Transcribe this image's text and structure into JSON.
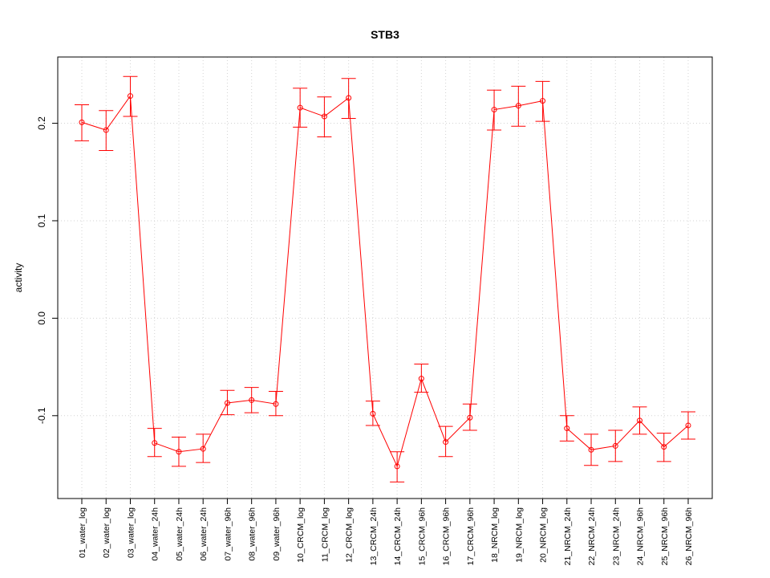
{
  "chart_data": {
    "type": "line",
    "title": "STB3",
    "xlabel": "",
    "ylabel": "activity",
    "ylim": [
      -0.185,
      0.268
    ],
    "yticks": [
      -0.1,
      0.0,
      0.1,
      0.2
    ],
    "ytick_labels": [
      "-0.1",
      "0.0",
      "0.1",
      "0.2"
    ],
    "grid": true,
    "series_color": "#ff0000",
    "grid_color": "#d3d3d3",
    "categories": [
      "01_water_log",
      "02_water_log",
      "03_water_log",
      "04_water_24h",
      "05_water_24h",
      "06_water_24h",
      "07_water_96h",
      "08_water_96h",
      "09_water_96h",
      "10_CRCM_log",
      "11_CRCM_log",
      "12_CRCM_log",
      "13_CRCM_24h",
      "14_CRCM_24h",
      "15_CRCM_96h",
      "16_CRCM_96h",
      "17_CRCM_96h",
      "18_NRCM_log",
      "19_NRCM_log",
      "20_NRCM_log",
      "21_NRCM_24h",
      "22_NRCM_24h",
      "23_NRCM_24h",
      "24_NRCM_96h",
      "25_NRCM_96h",
      "26_NRCM_96h"
    ],
    "values": [
      0.201,
      0.193,
      0.228,
      -0.128,
      -0.137,
      -0.134,
      -0.087,
      -0.084,
      -0.088,
      0.216,
      0.207,
      0.226,
      -0.098,
      -0.152,
      -0.062,
      -0.127,
      -0.102,
      0.214,
      0.218,
      0.223,
      -0.113,
      -0.135,
      -0.131,
      -0.105,
      -0.132,
      -0.11
    ],
    "upper": [
      0.219,
      0.213,
      0.248,
      -0.113,
      -0.122,
      -0.119,
      -0.074,
      -0.071,
      -0.075,
      0.236,
      0.227,
      0.246,
      -0.085,
      -0.137,
      -0.047,
      -0.111,
      -0.088,
      0.234,
      0.238,
      0.243,
      -0.1,
      -0.119,
      -0.115,
      -0.091,
      -0.118,
      -0.096
    ],
    "lower": [
      0.182,
      0.172,
      0.207,
      -0.142,
      -0.152,
      -0.148,
      -0.099,
      -0.097,
      -0.1,
      0.196,
      0.186,
      0.205,
      -0.11,
      -0.168,
      -0.076,
      -0.142,
      -0.115,
      0.193,
      0.197,
      0.202,
      -0.126,
      -0.151,
      -0.147,
      -0.119,
      -0.147,
      -0.124
    ]
  }
}
